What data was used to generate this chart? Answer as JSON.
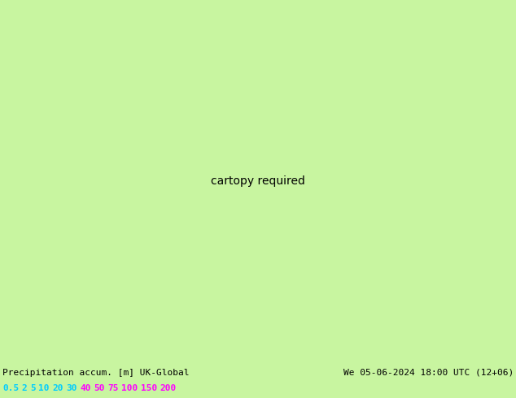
{
  "title_left": "Precipitation accum. [m] UK-Global",
  "title_right": "We 05-06-2024 18:00 UTC (12+06)",
  "legend_values": [
    "0.5",
    "2",
    "5",
    "10",
    "20",
    "30",
    "40",
    "50",
    "75",
    "100",
    "150",
    "200"
  ],
  "legend_text_colors": [
    "#00ccff",
    "#00ccff",
    "#00ccff",
    "#00ccff",
    "#00ccff",
    "#00ccff",
    "#ff00ff",
    "#ff00ff",
    "#ff00ff",
    "#ff00ff",
    "#ff00ff",
    "#ff00ff"
  ],
  "land_color": "#c8f5a0",
  "sea_color": "#d8d8d8",
  "precip_colors": {
    "0.5": "#a0e8ff",
    "2": "#78d0f0",
    "5": "#50b8e0",
    "10": "#28a0d0",
    "20": "#1888c0",
    "30": "#0870b0"
  },
  "border_color": "#222222",
  "fig_width": 6.34,
  "fig_height": 4.9,
  "dpi": 100,
  "bottom_text_color": "#000000",
  "label_font_size": 8,
  "legend_font_size": 8,
  "map_extent": [
    2.0,
    22.0,
    46.0,
    56.5
  ]
}
